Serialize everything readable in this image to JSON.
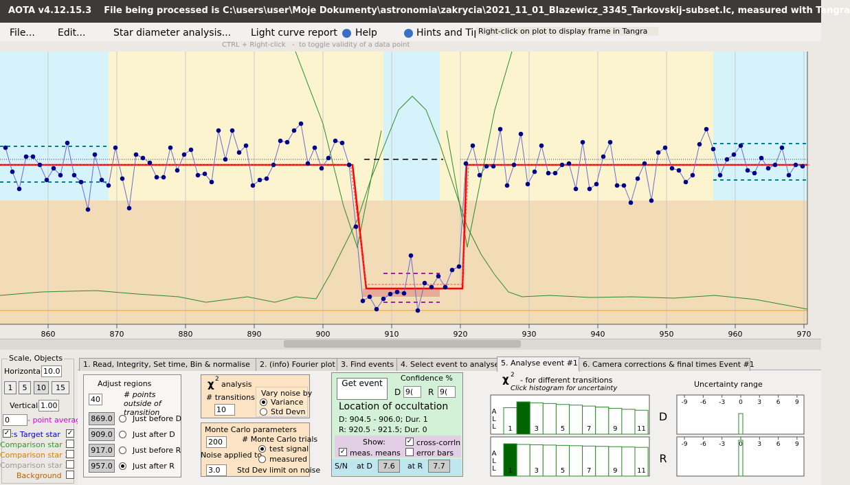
{
  "title_bar": "AOTA v4.12.15.3    File being processed is C:\\users\\user\\Moje Dokumenty\\astronomia\\zakrycia\\2021_11_01_Blazewicz_3345_Tarkovskij-subset.lc, measured with Tangra",
  "menu": [
    "File...",
    "Edit...",
    "Star diameter analysis...",
    "Light curve report",
    "Help",
    "Hints and Tip"
  ],
  "tooltip": "Right-click on plot to display frame in Tangra",
  "hint": "CTRL + Right-click   -  to toggle validity of a data point",
  "chart_data": {
    "type": "line",
    "x": [
      853.8,
      854.8,
      855.8,
      856.8,
      857.8,
      858.8,
      859.8,
      860.8,
      861.8,
      862.8,
      863.8,
      864.8,
      865.8,
      866.8,
      867.8,
      868.8,
      869.8,
      870.8,
      871.8,
      872.8,
      873.8,
      874.8,
      875.8,
      876.8,
      877.8,
      878.8,
      879.8,
      880.8,
      881.8,
      882.8,
      883.8,
      884.8,
      885.8,
      886.8,
      887.8,
      888.8,
      889.8,
      890.8,
      891.8,
      892.8,
      893.8,
      894.8,
      895.8,
      896.8,
      897.8,
      898.8,
      899.8,
      900.8,
      901.8,
      902.8,
      903.8,
      904.8,
      905.8,
      906.8,
      907.8,
      908.8,
      909.8,
      910.8,
      911.8,
      912.8,
      913.8,
      914.8,
      915.8,
      916.8,
      917.8,
      918.8,
      919.8,
      920.8,
      921.8,
      922.8,
      923.8,
      924.8,
      925.8,
      926.8,
      927.8,
      928.8,
      929.8,
      930.8,
      931.8,
      932.8,
      933.8,
      934.8,
      935.8,
      936.8,
      937.8,
      938.8,
      939.8,
      940.8,
      941.8,
      942.8,
      943.8,
      944.8,
      945.8,
      946.8,
      947.8,
      948.8,
      949.8,
      950.8,
      951.8,
      952.8,
      953.8,
      954.8,
      955.8,
      956.8,
      957.8,
      958.8,
      959.8,
      960.8,
      961.8,
      962.8,
      963.8,
      964.8,
      965.8,
      966.8,
      967.8,
      968.8,
      969.8
    ],
    "values": [
      255,
      220,
      195,
      242,
      242,
      230,
      208,
      225,
      215,
      262,
      215,
      205,
      165,
      245,
      208,
      200,
      255,
      210,
      167,
      245,
      240,
      233,
      212,
      212,
      255,
      222,
      245,
      252,
      215,
      217,
      205,
      280,
      238,
      280,
      248,
      258,
      200,
      208,
      210,
      230,
      265,
      263,
      280,
      290,
      232,
      255,
      225,
      240,
      265,
      262,
      230,
      140,
      32,
      38,
      20,
      35,
      42,
      45,
      43,
      98,
      18,
      58,
      52,
      68,
      52,
      77,
      82,
      232,
      258,
      215,
      228,
      228,
      282,
      200,
      230,
      275,
      202,
      220,
      258,
      218,
      218,
      230,
      232,
      195,
      263,
      195,
      202,
      242,
      263,
      200,
      200,
      175,
      210,
      232,
      178,
      248,
      255,
      225,
      222,
      205,
      215,
      260,
      282,
      253,
      215,
      238,
      245,
      258,
      222,
      218,
      240,
      225,
      230,
      255,
      215,
      230,
      228
    ],
    "color": "#00008b",
    "model": {
      "x": [
        853,
        904.3,
        906.3,
        920.3,
        920.9,
        970.5
      ],
      "values": [
        230,
        230,
        50,
        50,
        230,
        230
      ],
      "color": "#ff0000"
    },
    "xlim": [
      853,
      970.5
    ],
    "ylim": [
      0,
      395
    ],
    "xticks": [
      860,
      870,
      880,
      890,
      900,
      910,
      920,
      930,
      940,
      950,
      960,
      970
    ],
    "grid": true
  },
  "left_panel": {
    "title": "Scale, Objects",
    "horizontal_label": "Horizontal",
    "horizontal": "10.0",
    "scale_buttons": [
      "1",
      "5",
      "10",
      "15"
    ],
    "vertical_label": "Vertical",
    "vertical": "1.00",
    "average": "0",
    "average_label": "- point average",
    "objects": [
      ":s  Target star",
      "Comparison star 1",
      "Comparison star 2",
      "Comparison star 3",
      "Background"
    ]
  },
  "tabs": [
    "1.  Read, Integrity, Set time, Bin & normalise",
    "2. (info)  Fourier plot",
    "3. Find events",
    "4. Select event to analyse",
    "5. Analyse event #1",
    "6. Camera corrections & final times Event #1"
  ],
  "adjust": {
    "title": "Adjust regions",
    "points": "40",
    "points_label": "# points outside of transition",
    "rows": [
      [
        "869.0",
        "Just before D"
      ],
      [
        "909.0",
        "Just after D"
      ],
      [
        "917.0",
        "Just before R"
      ],
      [
        "957.0",
        "Just after R"
      ]
    ]
  },
  "chi": {
    "symbol": "χ",
    "sup": "2",
    "title": "analysis",
    "transitions_label": "# transitions",
    "transitions": "10",
    "vary_label": "Vary noise by",
    "vary": [
      "Variance",
      "Std Devn"
    ]
  },
  "monte": {
    "title": "Monte Carlo parameters",
    "trials": "200",
    "trials_label": "# Monte Carlo trials",
    "noise_label": "Noise applied to",
    "noise": [
      "test signal",
      "measured"
    ],
    "limit": "3.0",
    "limit_label": "Std Dev limit on noise"
  },
  "event": {
    "button": "Get event",
    "confidence": "Confidence %",
    "d": "D",
    "d_value": "9(",
    "r": "R",
    "r_value": "9(",
    "location": "Location of occultation",
    "d_line": "D: 904.5 - 906.0; Dur. 1",
    "r_line": "R: 920.5 - 921.5; Dur. 0",
    "show": "Show:",
    "cross": "cross-corrln",
    "means": "meas. means",
    "error": "error bars",
    "sn": "S/N",
    "at_d": "at D",
    "sn_d": "7.6",
    "at_r": "at R",
    "sn_r": "7.7"
  },
  "histogram": {
    "symbol": "χ",
    "sup": "2",
    "title": "- for different transitions",
    "subtitle": "Click histogram for uncertainty",
    "all": [
      "A",
      "L",
      "L"
    ],
    "labels": [
      1,
      3,
      5,
      7,
      9,
      11
    ],
    "d_label": "D",
    "d_values": [
      0.82,
      1.0,
      0.97,
      0.95,
      0.92,
      0.9,
      0.87,
      0.84,
      0.8,
      0.77,
      0.74
    ],
    "d_selected": 2,
    "r_label": "R",
    "r_values": [
      1.0,
      0.98,
      0.97,
      0.96,
      0.95,
      0.94,
      0.93,
      0.92,
      0.91,
      0.9,
      0.89
    ],
    "r_selected": 1
  },
  "uncertainty": {
    "title": "Uncertainty range",
    "ticks": [
      -9,
      -6,
      -3,
      0,
      3,
      6,
      9
    ]
  }
}
